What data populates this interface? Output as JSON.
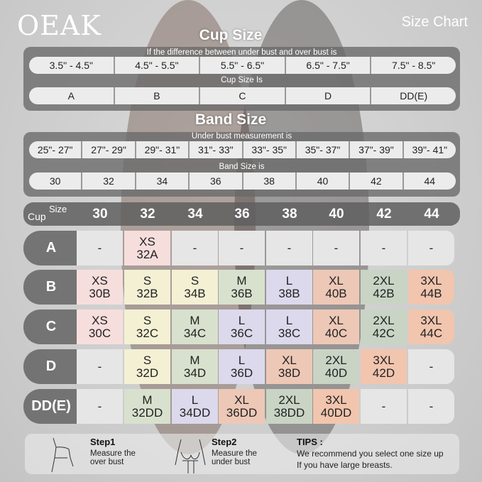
{
  "brand": "OEAK",
  "title": "Size Chart",
  "cup_section": {
    "title": "Cup Size",
    "diff_label": "If the  difference between under bust and over bust is",
    "diffs": [
      "3.5\" -  4.5\"",
      "4.5\" -  5.5\"",
      "5.5\" -  6.5\"",
      "6.5\" -  7.5\"",
      "7.5\" -  8.5\""
    ],
    "cup_label": "Cup Size Is",
    "cups": [
      "A",
      "B",
      "C",
      "D",
      "DD(E)"
    ]
  },
  "band_section": {
    "title": "Band Size",
    "under_label": "Under bust measurement is",
    "ranges": [
      "25\"- 27\"",
      "27\"- 29\"",
      "29\"- 31\"",
      "31\"- 33\"",
      "33\"- 35\"",
      "35\"- 37\"",
      "37\"- 39\"",
      "39\"- 41\""
    ],
    "band_label": "Band Size is",
    "bands": [
      "30",
      "32",
      "34",
      "36",
      "38",
      "40",
      "42",
      "44"
    ]
  },
  "grid": {
    "cup_word": "Cup",
    "size_word": "Size",
    "columns": [
      "30",
      "32",
      "34",
      "36",
      "38",
      "40",
      "42",
      "44"
    ],
    "rows": [
      {
        "cup": "A",
        "cells": [
          "-",
          "XS 32A",
          "-",
          "-",
          "-",
          "-",
          "-",
          "-"
        ]
      },
      {
        "cup": "B",
        "cells": [
          "XS 30B",
          "S 32B",
          "S 34B",
          "M 36B",
          "L 38B",
          "XL 40B",
          "2XL 42B",
          "3XL 44B"
        ]
      },
      {
        "cup": "C",
        "cells": [
          "XS 30C",
          "S 32C",
          "M 34C",
          "L 36C",
          "L 38C",
          "XL 40C",
          "2XL 42C",
          "3XL 44C"
        ]
      },
      {
        "cup": "D",
        "cells": [
          "-",
          "S 32D",
          "M 34D",
          "L 36D",
          "XL 38D",
          "2XL 40D",
          "3XL 42D",
          "-"
        ]
      },
      {
        "cup": "DD(E)",
        "cells": [
          "-",
          "M 32DD",
          "L 34DD",
          "XL 36DD",
          "2XL 38DD",
          "3XL 40DD",
          "-",
          "-"
        ]
      }
    ],
    "colors": {
      "XS": "#f6dedd",
      "S": "#f4f0d4",
      "M": "#d8e1cd",
      "L": "#dcd9ec",
      "XL": "#edc8b7",
      "2XL": "#c9d4c5",
      "3XL": "#f2c5ae",
      "-": "#e6e6e6"
    }
  },
  "footer": {
    "step1": {
      "title": "Step1",
      "text1": "Measure the",
      "text2": "over bust"
    },
    "step2": {
      "title": "Step2",
      "text1": "Measure the",
      "text2": "under bust"
    },
    "tips": {
      "title": "TIPS :",
      "line1": "We recommend you select one size up",
      "line2": "If you have large breasts."
    }
  }
}
